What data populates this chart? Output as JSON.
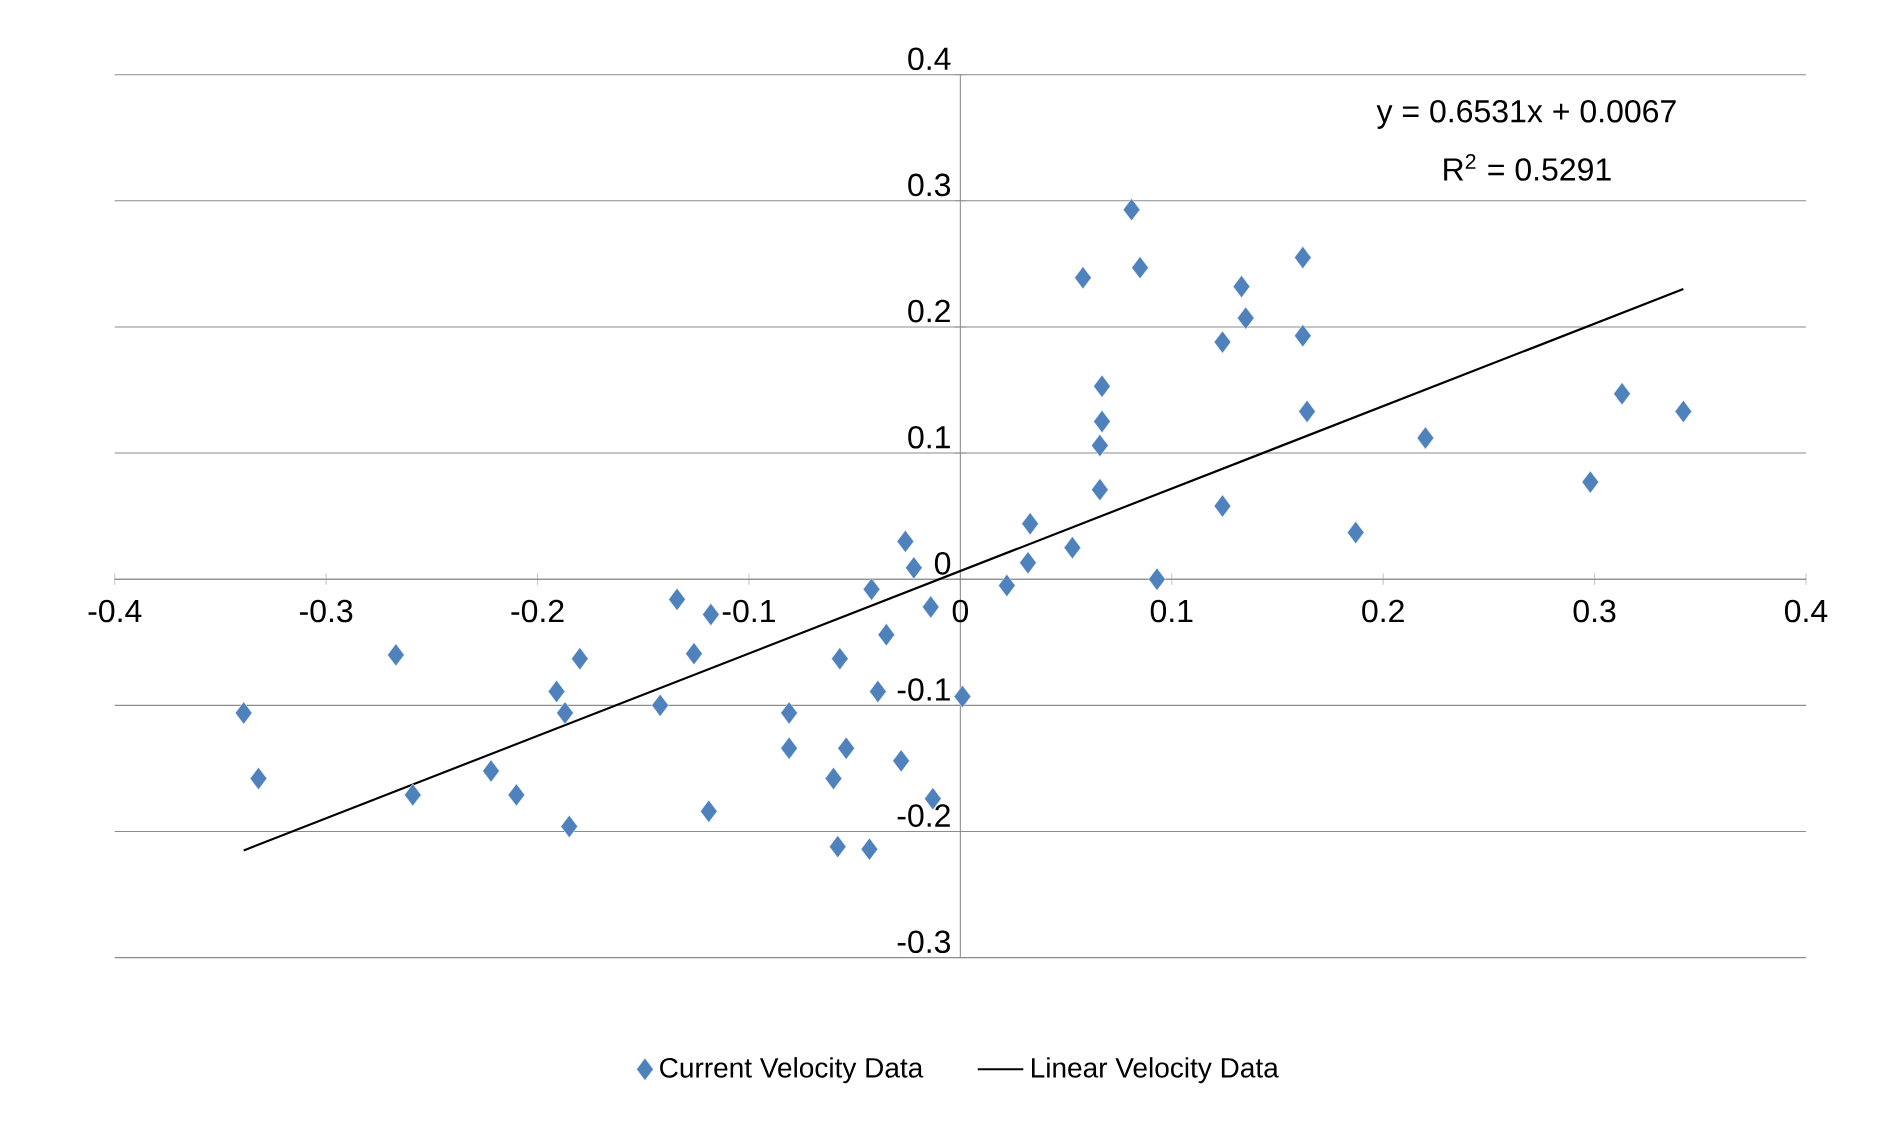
{
  "chart_data": {
    "type": "scatter",
    "annotations": [
      "y = 0.6531x + 0.0067",
      "R$^{2}$ = 0.5291"
    ],
    "series": [
      {
        "name": "Current Velocity Data",
        "color": "#4f81bd",
        "marker": "diamond",
        "x": [
          -0.339,
          -0.332,
          -0.267,
          -0.259,
          -0.222,
          -0.21,
          -0.191,
          -0.187,
          -0.185,
          -0.18,
          -0.142,
          -0.134,
          -0.126,
          -0.118,
          -0.119,
          -0.081,
          -0.081,
          -0.06,
          -0.057,
          -0.054,
          -0.058,
          -0.043,
          -0.042,
          -0.039,
          -0.035,
          -0.028,
          -0.026,
          -0.022,
          -0.014,
          -0.013,
          0.001,
          0.022,
          0.032,
          0.033,
          0.053,
          0.058,
          0.081,
          0.085,
          0.067,
          0.067,
          0.066,
          0.066,
          0.093,
          0.124,
          0.133,
          0.135,
          0.162,
          0.162,
          0.164,
          0.124,
          0.187,
          0.22,
          0.298,
          0.313,
          0.342
        ],
        "values": [
          -0.106,
          -0.158,
          -0.06,
          -0.171,
          -0.152,
          -0.171,
          -0.089,
          -0.106,
          -0.196,
          -0.063,
          -0.1,
          -0.016,
          -0.059,
          -0.028,
          -0.184,
          -0.106,
          -0.134,
          -0.158,
          -0.063,
          -0.134,
          -0.212,
          -0.214,
          -0.008,
          -0.089,
          -0.044,
          -0.144,
          0.03,
          0.009,
          -0.022,
          -0.174,
          -0.093,
          -0.005,
          0.013,
          0.044,
          0.025,
          0.239,
          0.293,
          0.247,
          0.153,
          0.125,
          0.106,
          0.071,
          0.0,
          0.188,
          0.232,
          0.207,
          0.255,
          0.193,
          0.133,
          0.058,
          0.037,
          0.112,
          0.077,
          0.147,
          0.133
        ]
      },
      {
        "name": "Linear  Velocity Data",
        "type": "line",
        "color": "#000000",
        "marker": "none",
        "x": [
          -0.339,
          0.342
        ],
        "values": [
          -0.215,
          0.23
        ]
      }
    ],
    "xlim": [
      -0.4,
      0.4
    ],
    "ylim": [
      -0.3,
      0.4
    ],
    "xticks": [
      -0.4,
      -0.3,
      -0.2,
      -0.1,
      0,
      0.1,
      0.2,
      0.3,
      0.4
    ],
    "yticks": [
      -0.3,
      -0.2,
      -0.1,
      0,
      0.1,
      0.2,
      0.3,
      0.4
    ],
    "grid": "y",
    "legend": "bottom"
  }
}
